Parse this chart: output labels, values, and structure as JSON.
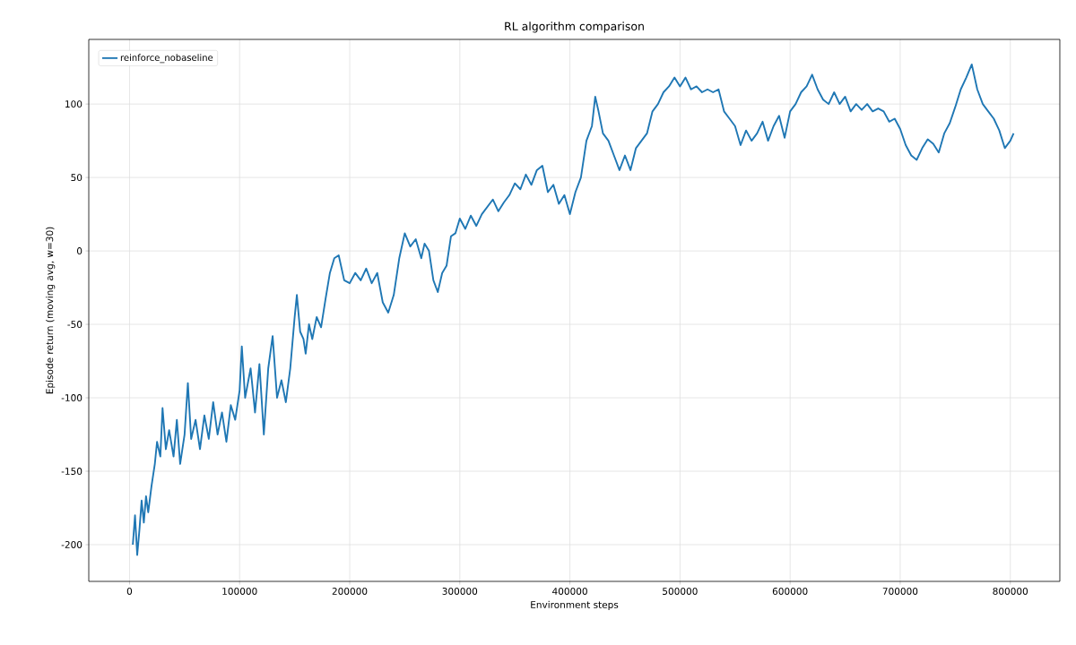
{
  "chart_data": {
    "type": "line",
    "title": "RL algorithm comparison",
    "xlabel": "Environment steps",
    "ylabel": "Episode return (moving avg, w=30)",
    "xlim": [
      -37000,
      845000
    ],
    "xticks": [
      0,
      100000,
      200000,
      300000,
      400000,
      500000,
      600000,
      700000,
      800000
    ],
    "ylim": [
      -225,
      144
    ],
    "yticks": [
      -200,
      -150,
      -100,
      -50,
      0,
      50,
      100
    ],
    "grid": true,
    "legend": "top left",
    "series": [
      {
        "name": "reinforce_nobaseline",
        "color": "#1f77b4",
        "x": [
          3000,
          5000,
          7000,
          9000,
          11000,
          13000,
          15000,
          17000,
          20000,
          23000,
          25000,
          28000,
          30000,
          33000,
          36000,
          40000,
          43000,
          46000,
          50000,
          53000,
          56000,
          60000,
          64000,
          68000,
          72000,
          76000,
          80000,
          84000,
          88000,
          92000,
          96000,
          100000,
          102000,
          105000,
          110000,
          114000,
          118000,
          122000,
          126000,
          130000,
          134000,
          138000,
          142000,
          146000,
          150000,
          152000,
          155000,
          158000,
          160000,
          163000,
          166000,
          170000,
          174000,
          178000,
          182000,
          186000,
          190000,
          195000,
          200000,
          205000,
          210000,
          215000,
          220000,
          225000,
          230000,
          235000,
          240000,
          245000,
          250000,
          255000,
          260000,
          265000,
          268000,
          272000,
          276000,
          280000,
          284000,
          288000,
          292000,
          296000,
          300000,
          305000,
          310000,
          315000,
          320000,
          325000,
          330000,
          335000,
          340000,
          345000,
          350000,
          355000,
          360000,
          365000,
          370000,
          375000,
          380000,
          385000,
          390000,
          395000,
          400000,
          405000,
          410000,
          415000,
          420000,
          423000,
          426000,
          430000,
          435000,
          440000,
          445000,
          450000,
          455000,
          460000,
          465000,
          470000,
          475000,
          480000,
          485000,
          490000,
          495000,
          500000,
          505000,
          510000,
          515000,
          520000,
          525000,
          530000,
          535000,
          540000,
          545000,
          550000,
          555000,
          560000,
          565000,
          570000,
          575000,
          580000,
          585000,
          590000,
          595000,
          600000,
          605000,
          610000,
          615000,
          620000,
          625000,
          630000,
          635000,
          640000,
          645000,
          650000,
          655000,
          660000,
          665000,
          670000,
          675000,
          680000,
          685000,
          690000,
          695000,
          700000,
          705000,
          710000,
          715000,
          720000,
          725000,
          730000,
          735000,
          740000,
          745000,
          750000,
          755000,
          760000,
          765000,
          770000,
          775000,
          780000,
          785000,
          790000,
          795000,
          800000,
          803000
        ],
        "values": [
          -200,
          -180,
          -207,
          -190,
          -170,
          -185,
          -167,
          -178,
          -160,
          -145,
          -130,
          -140,
          -107,
          -135,
          -122,
          -140,
          -115,
          -145,
          -125,
          -90,
          -128,
          -115,
          -135,
          -112,
          -128,
          -103,
          -125,
          -110,
          -130,
          -105,
          -115,
          -95,
          -65,
          -100,
          -80,
          -110,
          -77,
          -125,
          -80,
          -58,
          -100,
          -88,
          -103,
          -80,
          -45,
          -30,
          -55,
          -60,
          -70,
          -50,
          -60,
          -45,
          -52,
          -33,
          -15,
          -5,
          -3,
          -20,
          -22,
          -15,
          -20,
          -12,
          -22,
          -15,
          -35,
          -42,
          -30,
          -5,
          12,
          3,
          8,
          -5,
          5,
          0,
          -20,
          -28,
          -15,
          -10,
          10,
          12,
          22,
          15,
          24,
          17,
          25,
          30,
          35,
          27,
          33,
          38,
          46,
          42,
          52,
          45,
          55,
          58,
          40,
          45,
          32,
          38,
          25,
          40,
          50,
          75,
          85,
          105,
          95,
          80,
          75,
          65,
          55,
          65,
          55,
          70,
          75,
          80,
          95,
          100,
          108,
          112,
          118,
          112,
          118,
          110,
          112,
          108,
          110,
          108,
          110,
          95,
          90,
          85,
          72,
          82,
          75,
          80,
          88,
          75,
          85,
          92,
          77,
          95,
          100,
          108,
          112,
          120,
          110,
          103,
          100,
          108,
          100,
          105,
          95,
          100,
          96,
          100,
          95,
          97,
          95,
          88,
          90,
          83,
          72,
          65,
          62,
          70,
          76,
          73,
          67,
          80,
          87,
          98,
          110,
          118,
          127,
          110,
          100,
          95,
          90,
          82,
          70,
          75,
          80
        ]
      }
    ]
  }
}
